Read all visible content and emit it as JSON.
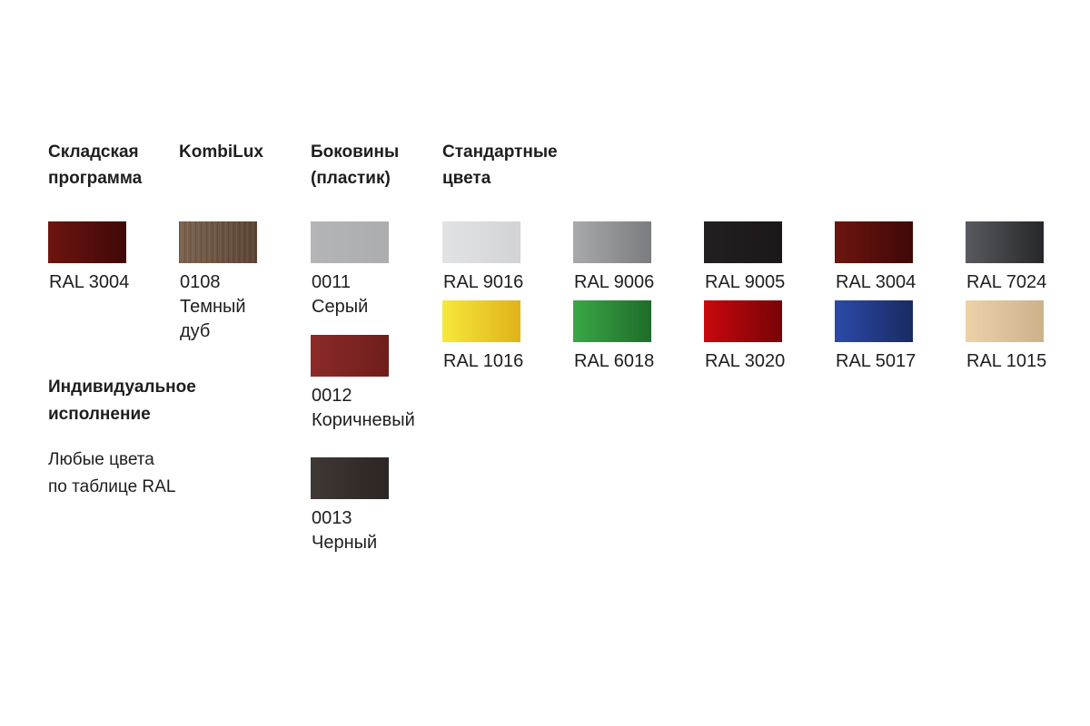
{
  "headers": {
    "stock": [
      "Складская",
      "программа"
    ],
    "kombilux": [
      "KombiLux"
    ],
    "sides": [
      "Боковины",
      "(пластик)"
    ],
    "standard": [
      "Стандартные",
      "цвета"
    ],
    "individual": [
      "Индивидуальное",
      "исполнение"
    ]
  },
  "individual_note": [
    "Любые цвета",
    "по таблице RAL"
  ],
  "stock_swatches": [
    {
      "label": [
        "RAL 3004"
      ],
      "from": "#6e1510",
      "to": "#3f0807"
    }
  ],
  "kombilux_swatches": [
    {
      "label": [
        "0108",
        "Темный",
        "дуб"
      ],
      "from": "#7d6450",
      "to": "#5e4535",
      "texture": "wood"
    }
  ],
  "side_swatches": [
    {
      "label": [
        "0011",
        "Серый"
      ],
      "from": "#b4b5b7",
      "to": "#acadaf"
    },
    {
      "label": [
        "0012",
        "Коричневый"
      ],
      "from": "#8c2a26",
      "to": "#6e1e1c"
    },
    {
      "label": [
        "0013",
        "Черный"
      ],
      "from": "#3f3834",
      "to": "#2c2624"
    }
  ],
  "standard_swatches": [
    {
      "label": [
        "RAL 9016"
      ],
      "from": "#e2e3e5",
      "to": "#d2d3d6"
    },
    {
      "label": [
        "RAL 9006"
      ],
      "from": "#a8a9ad",
      "to": "#7b7c80"
    },
    {
      "label": [
        "RAL 9005"
      ],
      "from": "#231f20",
      "to": "#1b1819"
    },
    {
      "label": [
        "RAL 3004"
      ],
      "from": "#6e1510",
      "to": "#3f0807"
    },
    {
      "label": [
        "RAL 7024"
      ],
      "from": "#595a5f",
      "to": "#26272b"
    },
    {
      "label": [
        "RAL 1016"
      ],
      "from": "#f6e83a",
      "to": "#e0b21a"
    },
    {
      "label": [
        "RAL 6018"
      ],
      "from": "#3aa845",
      "to": "#1f6b2b"
    },
    {
      "label": [
        "RAL 3020"
      ],
      "from": "#c8080d",
      "to": "#770306"
    },
    {
      "label": [
        "RAL 5017"
      ],
      "from": "#2b4aa8",
      "to": "#1a2a62"
    },
    {
      "label": [
        "RAL 1015"
      ],
      "from": "#ecd2a8",
      "to": "#cbb28b"
    }
  ]
}
